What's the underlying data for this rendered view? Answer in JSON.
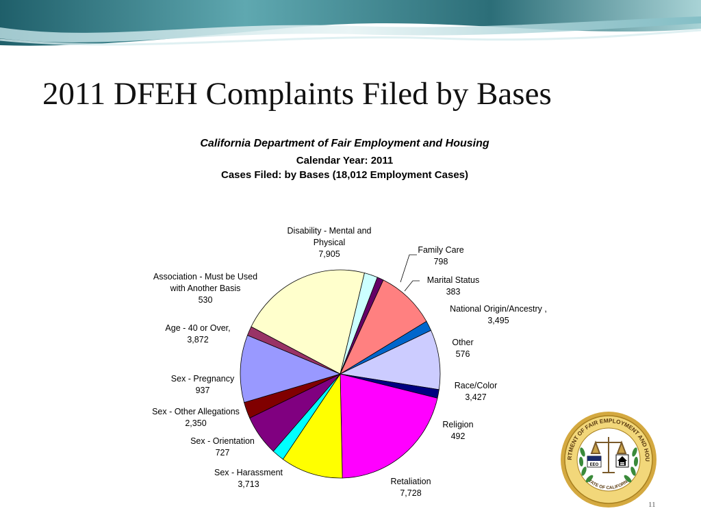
{
  "slide": {
    "title": "2011 DFEH Complaints Filed by Bases",
    "page_number": "11"
  },
  "seal": {
    "ring_text": "DEPARTMENT OF FAIR EMPLOYMENT AND HOUSING",
    "bottom_text": "STATE OF CALIFORNIA",
    "badge_text": "EEO",
    "colors": {
      "ring": "#e0c060",
      "inner": "#ffffff",
      "laurel": "#3a8a3a",
      "scale": "#7a5a2a"
    }
  },
  "chart_data": {
    "type": "pie",
    "title": "California Department of Fair Employment and Housing",
    "subtitle_1": "Calendar Year: 2011",
    "subtitle_2": "Cases Filed: by Bases (18,012 Employment Cases)",
    "slices": [
      {
        "label": "Disability - Mental and Physical",
        "value": 7905,
        "display": "7,905",
        "color": "#ffffcc"
      },
      {
        "label": "Family Care",
        "value": 798,
        "display": "798",
        "color": "#ccffff"
      },
      {
        "label": "Marital Status",
        "value": 383,
        "display": "383",
        "color": "#660066"
      },
      {
        "label": "National Origin/Ancestry",
        "value": 3495,
        "display": "3,495",
        "color": "#ff8080"
      },
      {
        "label": "Other",
        "value": 576,
        "display": "576",
        "color": "#0066cc"
      },
      {
        "label": "Race/Color",
        "value": 3427,
        "display": "3,427",
        "color": "#ccccff"
      },
      {
        "label": "Religion",
        "value": 492,
        "display": "492",
        "color": "#000080"
      },
      {
        "label": "Retaliation",
        "value": 7728,
        "display": "7,728",
        "color": "#ff00ff"
      },
      {
        "label": "Sex - Harassment",
        "value": 3713,
        "display": "3,713",
        "color": "#ffff00"
      },
      {
        "label": "Sex - Orientation",
        "value": 727,
        "display": "727",
        "color": "#00ffff"
      },
      {
        "label": "Sex - Other Allegations",
        "value": 2350,
        "display": "2,350",
        "color": "#800080"
      },
      {
        "label": "Sex - Pregnancy",
        "value": 937,
        "display": "937",
        "color": "#800000"
      },
      {
        "label": "Age - 40 or Over,",
        "value": 3872,
        "display": "3,872",
        "color": "#9999ff"
      },
      {
        "label": "Association - Must be Used with Another Basis",
        "value": 530,
        "display": "530",
        "color": "#993366"
      }
    ],
    "label_lines": [
      [
        "Disability - Mental and",
        "Physical",
        "7,905"
      ],
      [
        "Family Care",
        "798"
      ],
      [
        "Marital Status",
        "383"
      ],
      [
        "National Origin/Ancestry ,",
        "3,495"
      ],
      [
        "Other",
        "576"
      ],
      [
        "Race/Color",
        "3,427"
      ],
      [
        "Religion",
        "492"
      ],
      [
        "Retaliation",
        "7,728"
      ],
      [
        "Sex - Harassment",
        "3,713"
      ],
      [
        "Sex - Orientation",
        "727"
      ],
      [
        "Sex - Other Allegations",
        "2,350"
      ],
      [
        "Sex - Pregnancy",
        "937"
      ],
      [
        "Age - 40 or Over,",
        "3,872"
      ],
      [
        "Association - Must be Used",
        "with Another Basis",
        "530"
      ]
    ],
    "legend": "none"
  }
}
